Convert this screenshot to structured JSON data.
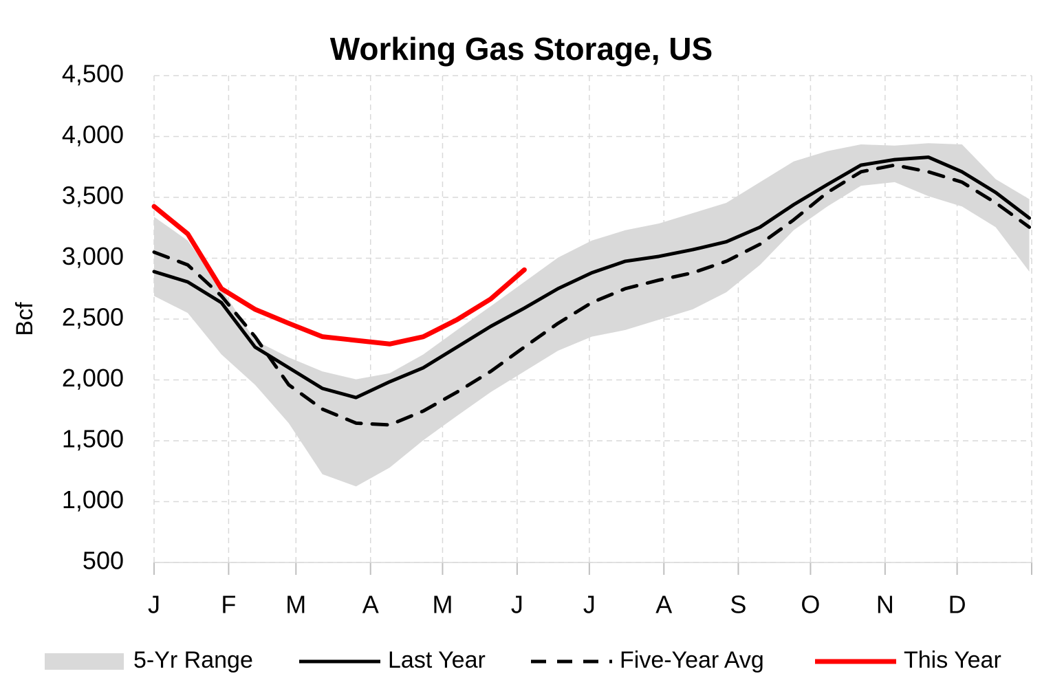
{
  "chart_data": {
    "type": "line",
    "title": "Working Gas Storage, US",
    "y_label": "Bcf",
    "x": [
      0,
      2,
      4,
      6,
      8,
      10,
      12,
      14,
      16,
      18,
      20,
      22,
      24,
      26,
      28,
      30,
      32,
      34,
      36,
      38,
      40,
      42,
      44,
      46,
      48,
      50,
      52
    ],
    "xlim": [
      0,
      52.14
    ],
    "xticks": [
      {
        "value": 0,
        "label": "J"
      },
      {
        "value": 4.43,
        "label": "F"
      },
      {
        "value": 8.43,
        "label": "M"
      },
      {
        "value": 12.86,
        "label": "A"
      },
      {
        "value": 17.14,
        "label": "M"
      },
      {
        "value": 21.57,
        "label": "J"
      },
      {
        "value": 25.86,
        "label": "J"
      },
      {
        "value": 30.29,
        "label": "A"
      },
      {
        "value": 34.71,
        "label": "S"
      },
      {
        "value": 39,
        "label": "O"
      },
      {
        "value": 43.43,
        "label": "N"
      },
      {
        "value": 47.71,
        "label": "D"
      },
      {
        "value": 52.14,
        "label": null
      }
    ],
    "ylim": [
      500,
      4500
    ],
    "yticks": [
      500,
      {
        "value": 1000,
        "label": "1,000"
      },
      {
        "value": 1500,
        "label": "1,500"
      },
      {
        "value": 2000,
        "label": "2,000"
      },
      {
        "value": 2500,
        "label": "2,500"
      },
      {
        "value": 3000,
        "label": "3,000"
      },
      {
        "value": 3500,
        "label": "3,500"
      },
      {
        "value": 4000,
        "label": "4,000"
      },
      {
        "value": 4500,
        "label": "4,500"
      }
    ],
    "grid": true,
    "legend": "bottom",
    "series": [
      {
        "name": "5-Yr Range",
        "kind": "range",
        "color": "#d9d9d9",
        "low": [
          2690,
          2550,
          2210,
          1960,
          1645,
          1225,
          1125,
          1280,
          1505,
          1705,
          1900,
          2070,
          2240,
          2355,
          2410,
          2495,
          2580,
          2720,
          2945,
          3230,
          3425,
          3595,
          3625,
          3510,
          3425,
          3255,
          2890
        ],
        "high": [
          3340,
          3145,
          2750,
          2325,
          2185,
          2070,
          2005,
          2055,
          2210,
          2410,
          2605,
          2805,
          3005,
          3145,
          3230,
          3285,
          3370,
          3455,
          3625,
          3795,
          3880,
          3935,
          3925,
          3945,
          3935,
          3650,
          3485
        ]
      },
      {
        "name": "Last Year",
        "kind": "line",
        "color": "#000000",
        "dashed": false,
        "values": [
          2890,
          2805,
          2635,
          2270,
          2100,
          1930,
          1855,
          1985,
          2100,
          2270,
          2440,
          2590,
          2750,
          2880,
          2975,
          3015,
          3070,
          3135,
          3255,
          3440,
          3605,
          3765,
          3810,
          3830,
          3710,
          3540,
          3330
        ]
      },
      {
        "name": "Five-Year Avg",
        "kind": "line",
        "color": "#000000",
        "dashed": true,
        "values": [
          3050,
          2945,
          2690,
          2355,
          1960,
          1760,
          1645,
          1630,
          1745,
          1900,
          2070,
          2270,
          2465,
          2635,
          2750,
          2820,
          2880,
          2975,
          3115,
          3315,
          3540,
          3710,
          3765,
          3710,
          3625,
          3455,
          3255
        ]
      },
      {
        "name": "This Year",
        "kind": "line",
        "color": "#ff0000",
        "dashed": false,
        "values": [
          3425,
          3200,
          2750,
          2580,
          2465,
          2355,
          2325,
          2295,
          2355,
          2495,
          2665,
          2905,
          null,
          null,
          null,
          null,
          null,
          null,
          null,
          null,
          null,
          null,
          null,
          null,
          null,
          null,
          null
        ]
      }
    ]
  }
}
